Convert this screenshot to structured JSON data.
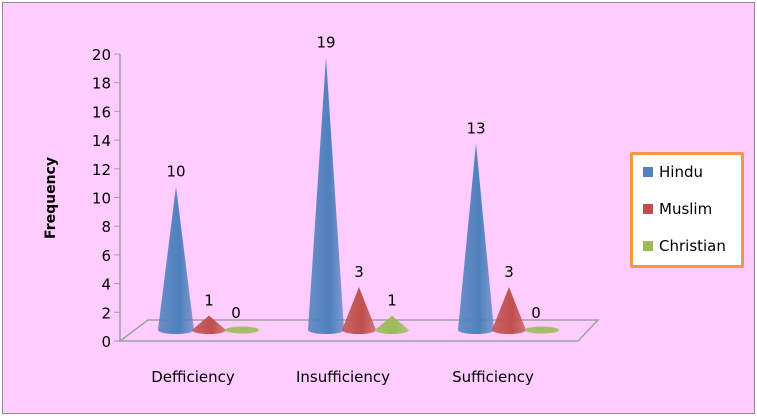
{
  "chart_data": {
    "type": "bar",
    "style": "3d-cone",
    "title": "",
    "xlabel": "",
    "ylabel": "Frequency",
    "ylim": [
      0,
      20
    ],
    "yticks": [
      0,
      2,
      4,
      6,
      8,
      10,
      12,
      14,
      16,
      18,
      20
    ],
    "categories": [
      "Defficiency",
      "Insufficiency",
      "Sufficiency"
    ],
    "series": [
      {
        "name": "Hindu",
        "values": [
          10,
          19,
          13
        ],
        "color": "#4f81bd"
      },
      {
        "name": "Muslim",
        "values": [
          1,
          3,
          3
        ],
        "color": "#c0504d"
      },
      {
        "name": "Christian",
        "values": [
          0,
          1,
          0
        ],
        "color": "#9bbb59"
      }
    ],
    "data_labels": true,
    "grid": false,
    "legend_position": "right",
    "legend_border_color": "#f79646",
    "background_color": "#ffccff"
  }
}
